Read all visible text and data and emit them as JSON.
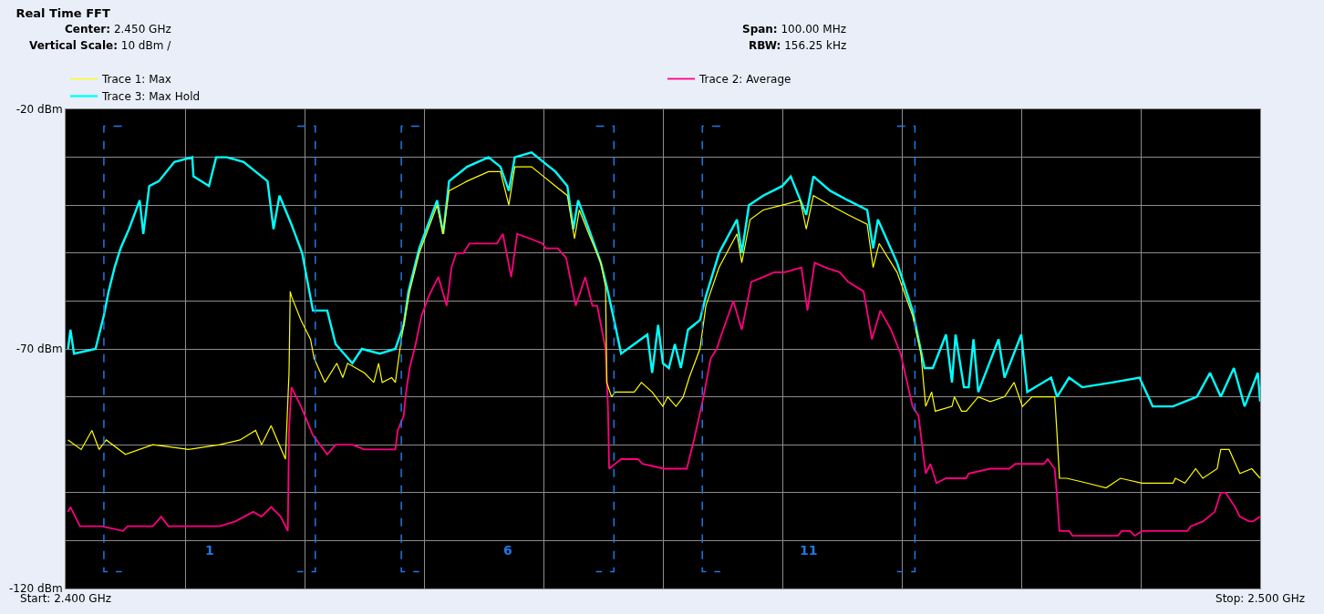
{
  "chart_data": {
    "type": "line",
    "title": "Real Time FFT",
    "annotations": [
      "Center: 2.450 GHz",
      "Span: 100.00 MHz",
      "Vertical Scale: 10 dBm /",
      "RBW: 156.25 kHz",
      "1",
      "6",
      "11"
    ],
    "xlim": [
      2.4,
      2.5
    ],
    "xticks": [
      {
        "value": 2.4,
        "label": "Start: 2.400 GHz"
      },
      {
        "value": 2.41,
        "label": null
      },
      {
        "value": 2.42,
        "label": null
      },
      {
        "value": 2.43,
        "label": null
      },
      {
        "value": 2.44,
        "label": null
      },
      {
        "value": 2.45,
        "label": null
      },
      {
        "value": 2.46,
        "label": null
      },
      {
        "value": 2.47,
        "label": null
      },
      {
        "value": 2.48,
        "label": null
      },
      {
        "value": 2.49,
        "label": null
      },
      {
        "value": 2.5,
        "label": "Stop: 2.500 GHz"
      }
    ],
    "ylim": [
      -120,
      -20
    ],
    "yticks": [
      {
        "value": -20,
        "label": "-20 dBm"
      },
      {
        "value": -30,
        "label": null
      },
      {
        "value": -40,
        "label": null
      },
      {
        "value": -50,
        "label": null
      },
      {
        "value": -60,
        "label": null
      },
      {
        "value": -70,
        "label": "-70 dBm"
      },
      {
        "value": -80,
        "label": null
      },
      {
        "value": -90,
        "label": null
      },
      {
        "value": -100,
        "label": null
      },
      {
        "value": -110,
        "label": null
      },
      {
        "value": -120,
        "label": "-120 dBm"
      }
    ],
    "grid": true,
    "legend": "top",
    "marker": "none",
    "line_style": "solid",
    "ref_lines": [
      {
        "axis": "x",
        "value": 2.4032,
        "color": "#1e78e6",
        "line_style": "dashed"
      },
      {
        "axis": "x",
        "value": 2.4209,
        "color": "#1e78e6",
        "line_style": "dashed"
      },
      {
        "axis": "x",
        "value": 2.4281,
        "color": "#1e78e6",
        "line_style": "dashed"
      },
      {
        "axis": "x",
        "value": 2.4459,
        "color": "#1e78e6",
        "line_style": "dashed"
      },
      {
        "axis": "x",
        "value": 2.4533,
        "color": "#1e78e6",
        "line_style": "dashed"
      },
      {
        "axis": "x",
        "value": 2.4711,
        "color": "#1e78e6",
        "line_style": "dashed"
      }
    ],
    "series": [
      {
        "name": "Trace 1: Max",
        "color": "#ffff00",
        "x": [
          2.4002,
          2.4013,
          2.4022,
          2.4028,
          2.4034,
          2.405,
          2.4073,
          2.4103,
          2.4129,
          2.4146,
          2.4159,
          2.4164,
          2.4172,
          2.4184,
          2.4187,
          2.4188,
          2.4189,
          2.4197,
          2.4205,
          2.4208,
          2.4217,
          2.4227,
          2.4232,
          2.4236,
          2.425,
          2.4258,
          2.4262,
          2.4265,
          2.4273,
          2.4276,
          2.4281,
          2.4288,
          2.4296,
          2.4302,
          2.4311,
          2.4316,
          2.4321,
          2.4336,
          2.4354,
          2.4364,
          2.4371,
          2.4376,
          2.439,
          2.44,
          2.441,
          2.442,
          2.4426,
          2.443,
          2.4438,
          2.4448,
          2.4452,
          2.4453,
          2.4457,
          2.446,
          2.4476,
          2.4482,
          2.4491,
          2.45,
          2.4504,
          2.4511,
          2.4517,
          2.4522,
          2.4531,
          2.4536,
          2.4547,
          2.4562,
          2.4566,
          2.4573,
          2.4584,
          2.46,
          2.4615,
          2.462,
          2.4626,
          2.464,
          2.4655,
          2.4671,
          2.4676,
          2.4681,
          2.4696,
          2.4709,
          2.4716,
          2.472,
          2.4725,
          2.4728,
          2.4742,
          2.4744,
          2.475,
          2.4754,
          2.4764,
          2.4774,
          2.4786,
          2.4794,
          2.4801,
          2.4809,
          2.4828,
          2.483,
          2.4832,
          2.4838,
          2.4855,
          2.4871,
          2.4883,
          2.4901,
          2.4927,
          2.4929,
          2.4937,
          2.4946,
          2.4952,
          2.4964,
          2.4967,
          2.4974,
          2.4983,
          2.4993,
          2.5
        ],
        "values": [
          -89,
          -91,
          -87,
          -91,
          -89,
          -92,
          -90,
          -91,
          -90,
          -89,
          -87,
          -90,
          -86,
          -93,
          -75,
          -58,
          -59,
          -64,
          -68,
          -72,
          -77,
          -73,
          -76,
          -73,
          -75,
          -77,
          -73,
          -77,
          -76,
          -77,
          -68,
          -58,
          -50,
          -46,
          -40,
          -46,
          -37,
          -35,
          -33,
          -33,
          -40,
          -32,
          -32,
          -34,
          -36,
          -38,
          -47,
          -41,
          -46,
          -52,
          -57,
          -77,
          -80,
          -79,
          -79,
          -77,
          -79,
          -82,
          -80,
          -82,
          -80,
          -76,
          -70,
          -61,
          -53,
          -46,
          -52,
          -43,
          -41,
          -40,
          -39,
          -45,
          -38,
          -40,
          -42,
          -44,
          -53,
          -48,
          -54,
          -63,
          -71,
          -82,
          -79,
          -83,
          -82,
          -80,
          -83,
          -83,
          -80,
          -81,
          -80,
          -77,
          -82,
          -80,
          -80,
          -88,
          -97,
          -97,
          -98,
          -99,
          -97,
          -98,
          -98,
          -97,
          -98,
          -95,
          -97,
          -95,
          -91,
          -91,
          -96,
          -95,
          -97
        ]
      },
      {
        "name": "Trace 2: Average",
        "color": "#ff0080",
        "x": [
          2.4002,
          2.4004,
          2.4012,
          2.4027,
          2.403,
          2.4048,
          2.4052,
          2.4073,
          2.408,
          2.4086,
          2.4109,
          2.4129,
          2.4142,
          2.4157,
          2.4164,
          2.4172,
          2.418,
          2.4186,
          2.4187,
          2.4189,
          2.4197,
          2.4207,
          2.4219,
          2.4226,
          2.424,
          2.425,
          2.4258,
          2.4276,
          2.4278,
          2.4283,
          2.4285,
          2.4288,
          2.4293,
          2.4298,
          2.4304,
          2.4312,
          2.4319,
          2.4323,
          2.4327,
          2.4333,
          2.4338,
          2.4351,
          2.4361,
          2.4366,
          2.4373,
          2.4378,
          2.4389,
          2.4399,
          2.4402,
          2.4412,
          2.4419,
          2.4427,
          2.4435,
          2.4441,
          2.4445,
          2.4452,
          2.4454,
          2.4455,
          2.4465,
          2.4479,
          2.4483,
          2.4501,
          2.4506,
          2.452,
          2.4526,
          2.4534,
          2.454,
          2.4545,
          2.4549,
          2.4559,
          2.4566,
          2.4574,
          2.4584,
          2.4593,
          2.4602,
          2.4616,
          2.4621,
          2.4627,
          2.4636,
          2.4648,
          2.4655,
          2.4668,
          2.4675,
          2.4682,
          2.4691,
          2.4699,
          2.4709,
          2.4714,
          2.472,
          2.4724,
          2.4729,
          2.4737,
          2.4751,
          2.4754,
          2.4756,
          2.4774,
          2.479,
          2.4795,
          2.4819,
          2.4822,
          2.4828,
          2.483,
          2.4832,
          2.484,
          2.4843,
          2.4881,
          2.4884,
          2.4891,
          2.4895,
          2.4901,
          2.4939,
          2.4942,
          2.4952,
          2.4962,
          2.4967,
          2.4971,
          2.4979,
          2.4983,
          2.4991,
          2.4994,
          2.5
        ],
        "values": [
          -104,
          -103,
          -107,
          -107,
          -107,
          -108,
          -107,
          -107,
          -105,
          -107,
          -107,
          -107,
          -106,
          -104,
          -105,
          -103,
          -105,
          -108,
          -87,
          -78,
          -82,
          -88,
          -92,
          -90,
          -90,
          -91,
          -91,
          -91,
          -87,
          -84,
          -79,
          -74,
          -69,
          -63,
          -59,
          -55,
          -61,
          -53,
          -50,
          -50,
          -48,
          -48,
          -48,
          -46,
          -55,
          -46,
          -47,
          -48,
          -49,
          -49,
          -51,
          -61,
          -55,
          -61,
          -61,
          -70,
          -82,
          -95,
          -93,
          -93,
          -94,
          -95,
          -95,
          -95,
          -89,
          -80,
          -72,
          -70,
          -67,
          -60,
          -66,
          -56,
          -55,
          -54,
          -54,
          -53,
          -62,
          -52,
          -53,
          -54,
          -56,
          -58,
          -68,
          -62,
          -66,
          -71,
          -82,
          -84,
          -96,
          -94,
          -98,
          -97,
          -97,
          -97,
          -96,
          -95,
          -95,
          -94,
          -94,
          -93,
          -95,
          -101,
          -108,
          -108,
          -109,
          -109,
          -108,
          -108,
          -109,
          -108,
          -108,
          -107,
          -106,
          -104,
          -100,
          -100,
          -103,
          -105,
          -106,
          -106,
          -105
        ]
      },
      {
        "name": "Trace 3: Max Hold",
        "color": "#00ffff",
        "x": [
          2.4002,
          2.4004,
          2.4007,
          2.4025,
          2.4032,
          2.4036,
          2.4041,
          2.4046,
          2.4053,
          2.4062,
          2.4065,
          2.407,
          2.4078,
          2.4091,
          2.4106,
          2.4107,
          2.412,
          2.4126,
          2.4135,
          2.4149,
          2.4159,
          2.4169,
          2.4174,
          2.4179,
          2.4189,
          2.4198,
          2.4207,
          2.4219,
          2.4226,
          2.424,
          2.4248,
          2.4263,
          2.4276,
          2.4283,
          2.4287,
          2.4296,
          2.4302,
          2.4311,
          2.4316,
          2.4321,
          2.4336,
          2.4354,
          2.4364,
          2.4371,
          2.4376,
          2.439,
          2.44,
          2.441,
          2.442,
          2.4425,
          2.4429,
          2.4438,
          2.4448,
          2.4453,
          2.446,
          2.4465,
          2.4476,
          2.4487,
          2.4491,
          2.4496,
          2.45,
          2.4505,
          2.451,
          2.4515,
          2.4521,
          2.4531,
          2.4536,
          2.4547,
          2.4562,
          2.4566,
          2.4572,
          2.4584,
          2.46,
          2.4607,
          2.462,
          2.4626,
          2.464,
          2.4655,
          2.4671,
          2.4676,
          2.468,
          2.4696,
          2.4709,
          2.4719,
          2.4726,
          2.4737,
          2.4742,
          2.4745,
          2.4752,
          2.4756,
          2.476,
          2.4764,
          2.4781,
          2.4786,
          2.48,
          2.4805,
          2.4825,
          2.483,
          2.484,
          2.4851,
          2.4876,
          2.4899,
          2.491,
          2.4927,
          2.4947,
          2.4958,
          2.4967,
          2.4978,
          2.4987,
          2.4998,
          2.5
        ],
        "values": [
          -70,
          -66,
          -71,
          -70,
          -63,
          -58,
          -53,
          -49,
          -45,
          -39,
          -46,
          -36,
          -35,
          -31,
          -30,
          -34,
          -36,
          -30,
          -30,
          -31,
          -33,
          -35,
          -45,
          -38,
          -44,
          -50,
          -62,
          -62,
          -69,
          -73,
          -70,
          -71,
          -70,
          -65,
          -58,
          -49,
          -45,
          -39,
          -46,
          -35,
          -32,
          -30,
          -32,
          -37,
          -30,
          -29,
          -31,
          -33,
          -36,
          -45,
          -39,
          -45,
          -52,
          -57,
          -65,
          -71,
          -69,
          -67,
          -75,
          -65,
          -73,
          -74,
          -69,
          -74,
          -66,
          -64,
          -59,
          -50,
          -43,
          -50,
          -40,
          -38,
          -36,
          -34,
          -42,
          -34,
          -37,
          -39,
          -41,
          -49,
          -43,
          -52,
          -62,
          -74,
          -74,
          -67,
          -77,
          -67,
          -78,
          -78,
          -68,
          -79,
          -68,
          -76,
          -67,
          -79,
          -76,
          -80,
          -76,
          -78,
          -77,
          -76,
          -82,
          -82,
          -80,
          -75,
          -80,
          -74,
          -82,
          -75,
          -81
        ]
      }
    ]
  }
}
